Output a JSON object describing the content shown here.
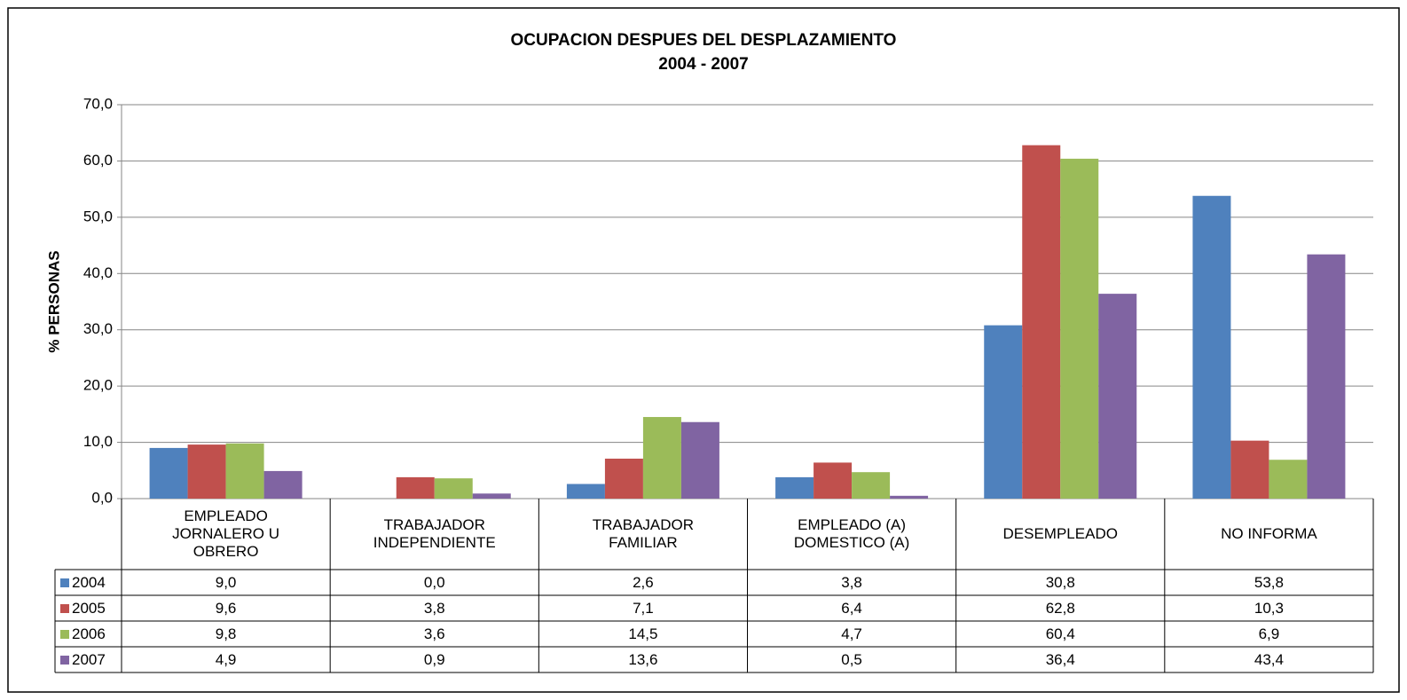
{
  "chart_data": {
    "type": "bar",
    "title": "OCUPACION DESPUES DEL DESPLAZAMIENTO",
    "subtitle": "2004 - 2007",
    "y_label": "% PERSONAS",
    "categories": [
      "EMPLEADO JORNALERO U OBRERO",
      "TRABAJADOR INDEPENDIENTE",
      "TRABAJADOR FAMILIAR",
      "EMPLEADO (A) DOMESTICO (A)",
      "DESEMPLEADO",
      "NO INFORMA"
    ],
    "series": [
      {
        "name": "2004",
        "color": "#4f81bd",
        "values": [
          9.0,
          0.0,
          2.6,
          3.8,
          30.8,
          53.8
        ],
        "value_labels": [
          "9,0",
          "0,0",
          "2,6",
          "3,8",
          "30,8",
          "53,8"
        ]
      },
      {
        "name": "2005",
        "color": "#c0504d",
        "values": [
          9.6,
          3.8,
          7.1,
          6.4,
          62.8,
          10.3
        ],
        "value_labels": [
          "9,6",
          "3,8",
          "7,1",
          "6,4",
          "62,8",
          "10,3"
        ]
      },
      {
        "name": "2006",
        "color": "#9bbb59",
        "values": [
          9.8,
          3.6,
          14.5,
          4.7,
          60.4,
          6.9
        ],
        "value_labels": [
          "9,8",
          "3,6",
          "14,5",
          "4,7",
          "60,4",
          "6,9"
        ]
      },
      {
        "name": "2007",
        "color": "#8064a2",
        "values": [
          4.9,
          0.9,
          13.6,
          0.5,
          36.4,
          43.4
        ],
        "value_labels": [
          "4,9",
          "0,9",
          "13,6",
          "0,5",
          "36,4",
          "43,4"
        ]
      }
    ],
    "ylim": [
      0,
      70
    ],
    "yticks": [
      {
        "value": 0,
        "label": "0,0"
      },
      {
        "value": 10,
        "label": "10,0"
      },
      {
        "value": 20,
        "label": "20,0"
      },
      {
        "value": 30,
        "label": "30,0"
      },
      {
        "value": 40,
        "label": "40,0"
      },
      {
        "value": 50,
        "label": "50,0"
      },
      {
        "value": 60,
        "label": "60,0"
      },
      {
        "value": 70,
        "label": "70,0"
      }
    ],
    "grid": true
  }
}
